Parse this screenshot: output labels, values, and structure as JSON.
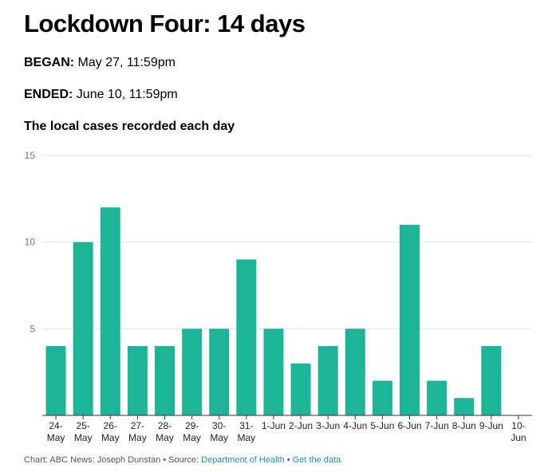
{
  "header": {
    "title": "Lockdown Four: 14 days",
    "began_label": "BEGAN:",
    "began_value": " May 27, 11:59pm",
    "ended_label": "ENDED:",
    "ended_value": " June 10, 11:59pm"
  },
  "chart_data": {
    "type": "bar",
    "title": "The local cases recorded each day",
    "xlabel": "",
    "ylabel": "",
    "ylim": [
      0,
      15
    ],
    "yticks": [
      0,
      5,
      10,
      15
    ],
    "ytick_labels": [
      "",
      "5",
      "10",
      "15"
    ],
    "grid": true,
    "bar_color": "#1db597",
    "categories": [
      [
        "24-",
        "May"
      ],
      [
        "25-",
        "May"
      ],
      [
        "26-",
        "May"
      ],
      [
        "27-",
        "May"
      ],
      [
        "28-",
        "May"
      ],
      [
        "29-",
        "May"
      ],
      [
        "30-",
        "May"
      ],
      [
        "31-",
        "May"
      ],
      [
        "1-Jun"
      ],
      [
        "2-Jun"
      ],
      [
        "3-Jun"
      ],
      [
        "4-Jun"
      ],
      [
        "5-Jun"
      ],
      [
        "6-Jun"
      ],
      [
        "7-Jun"
      ],
      [
        "8-Jun"
      ],
      [
        "9-Jun"
      ],
      [
        "10-",
        "Jun"
      ]
    ],
    "values": [
      4,
      10,
      12,
      4,
      4,
      5,
      5,
      9,
      5,
      3,
      4,
      5,
      2,
      11,
      2,
      1,
      4,
      0
    ]
  },
  "footer": {
    "credit": "Chart: ABC News: Joseph Dunstan",
    "sep1": " • Source: ",
    "source_link": "Department of Health",
    "sep2": " • ",
    "data_link": "Get the data"
  }
}
